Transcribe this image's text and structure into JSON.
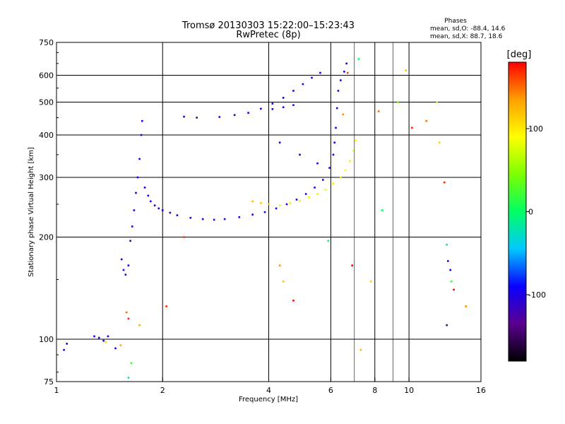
{
  "chart_data": {
    "type": "scatter",
    "title": "Tromsø 20130303 15:22:00–15:23:43",
    "subtitle": "RwPretec (8p)",
    "xlabel": "Frequency [MHz]",
    "ylabel": "Stationary phase Virtual Height [km]",
    "x_scale": "log",
    "y_scale": "log",
    "xlim": [
      1,
      16
    ],
    "ylim": [
      75,
      750
    ],
    "x_ticks": [
      1,
      2,
      4,
      6,
      8,
      10,
      16
    ],
    "y_ticks": [
      75,
      100,
      200,
      300,
      400,
      500,
      600,
      750
    ],
    "x_grid": [
      2,
      4,
      6,
      8,
      10
    ],
    "x_minor_grid": [
      7,
      9
    ],
    "y_grid": [
      100,
      200,
      300,
      400,
      500,
      600
    ],
    "grid": true,
    "phase_note": {
      "heading": "Phases",
      "line_o": "mean, sd,O: -88.4, 14.6",
      "line_x": "mean, sd,X: 88.7, 18.6"
    },
    "colorbar": {
      "label": "[deg]",
      "min": -180,
      "max": 180,
      "ticks": [
        100,
        0,
        -100
      ],
      "stops": [
        "#000000",
        "#5a0090",
        "#0a00ff",
        "#00c8ff",
        "#00ff64",
        "#7cff00",
        "#ffff00",
        "#ffa000",
        "#ff0000"
      ]
    },
    "series": [
      {
        "points": [
          [
            1.05,
            93,
            -100
          ],
          [
            1.07,
            97,
            -110
          ],
          [
            1.28,
            102,
            -95
          ],
          [
            1.32,
            101,
            -105
          ],
          [
            1.36,
            99,
            -90
          ],
          [
            1.4,
            102,
            -100
          ],
          [
            1.47,
            94,
            -110
          ],
          [
            1.53,
            172,
            -100
          ],
          [
            1.55,
            160,
            -110
          ],
          [
            1.57,
            155,
            -105
          ],
          [
            1.6,
            165,
            -95
          ],
          [
            1.62,
            195,
            -100
          ],
          [
            1.64,
            215,
            -100
          ],
          [
            1.66,
            240,
            -110
          ],
          [
            1.68,
            270,
            -100
          ],
          [
            1.7,
            300,
            -95
          ],
          [
            1.72,
            340,
            -100
          ],
          [
            1.74,
            400,
            -105
          ],
          [
            1.75,
            440,
            -100
          ],
          [
            1.78,
            280,
            -100
          ],
          [
            1.82,
            265,
            -95
          ],
          [
            1.85,
            255,
            -100
          ],
          [
            1.9,
            248,
            -105
          ],
          [
            1.95,
            243,
            -100
          ],
          [
            2.0,
            240,
            -100
          ],
          [
            2.1,
            236,
            -110
          ],
          [
            2.2,
            232,
            -100
          ],
          [
            2.4,
            228,
            -100
          ],
          [
            2.6,
            226,
            -95
          ],
          [
            2.8,
            225,
            -105
          ],
          [
            3.0,
            226,
            -100
          ],
          [
            3.3,
            229,
            -100
          ],
          [
            3.6,
            233,
            -105
          ],
          [
            3.9,
            237,
            -100
          ],
          [
            4.2,
            243,
            -100
          ],
          [
            4.5,
            250,
            -95
          ],
          [
            4.8,
            258,
            -100
          ],
          [
            5.1,
            268,
            -105
          ],
          [
            5.4,
            280,
            -100
          ],
          [
            5.7,
            295,
            -100
          ],
          [
            5.95,
            320,
            -110
          ],
          [
            6.1,
            350,
            -105
          ],
          [
            6.15,
            380,
            -100
          ],
          [
            6.2,
            420,
            -100
          ],
          [
            6.25,
            480,
            -110
          ],
          [
            6.3,
            540,
            -100
          ],
          [
            6.4,
            580,
            -100
          ],
          [
            6.55,
            615,
            -100
          ],
          [
            6.65,
            650,
            -105
          ],
          [
            2.3,
            453,
            -100
          ],
          [
            2.5,
            450,
            -105
          ],
          [
            2.9,
            452,
            -100
          ],
          [
            3.2,
            458,
            -100
          ],
          [
            3.5,
            465,
            -95
          ],
          [
            3.8,
            478,
            -100
          ],
          [
            4.1,
            495,
            -100
          ],
          [
            4.4,
            515,
            -105
          ],
          [
            4.7,
            540,
            -100
          ],
          [
            5.0,
            565,
            -100
          ],
          [
            5.3,
            590,
            -100
          ],
          [
            5.6,
            610,
            -100
          ],
          [
            4.1,
            477,
            -100
          ],
          [
            4.4,
            483,
            -100
          ],
          [
            4.7,
            490,
            -100
          ],
          [
            4.3,
            380,
            -100
          ],
          [
            4.9,
            350,
            -100
          ],
          [
            5.5,
            330,
            -100
          ]
        ]
      },
      {
        "points": [
          [
            3.6,
            255,
            120
          ],
          [
            3.8,
            252,
            115
          ],
          [
            4.0,
            250,
            110
          ],
          [
            4.3,
            248,
            95
          ],
          [
            4.6,
            252,
            100
          ],
          [
            4.9,
            256,
            100
          ],
          [
            5.2,
            262,
            95
          ],
          [
            5.5,
            268,
            100
          ],
          [
            5.8,
            276,
            95
          ],
          [
            6.1,
            288,
            100
          ],
          [
            6.4,
            300,
            100
          ],
          [
            6.6,
            315,
            95
          ],
          [
            6.8,
            335,
            100
          ],
          [
            6.95,
            360,
            90
          ],
          [
            7.05,
            385,
            100
          ],
          [
            6.5,
            460,
            140
          ],
          [
            6.7,
            610,
            160
          ],
          [
            7.2,
            670,
            10
          ],
          [
            8.2,
            470,
            150
          ],
          [
            8.4,
            240,
            0
          ],
          [
            9.3,
            500,
            40
          ],
          [
            9.8,
            620,
            120
          ],
          [
            10.2,
            420,
            170
          ],
          [
            11.2,
            440,
            150
          ],
          [
            12.0,
            500,
            70
          ],
          [
            12.2,
            380,
            110
          ],
          [
            12.6,
            290,
            170
          ],
          [
            12.8,
            190,
            -20
          ],
          [
            12.9,
            170,
            -120
          ],
          [
            13.1,
            160,
            -90
          ],
          [
            13.2,
            148,
            20
          ],
          [
            13.4,
            140,
            180
          ],
          [
            14.5,
            125,
            140
          ],
          [
            12.8,
            110,
            -110
          ],
          [
            7.8,
            148,
            110
          ],
          [
            7.3,
            93,
            130
          ],
          [
            6.9,
            165,
            180
          ],
          [
            5.9,
            195,
            0
          ],
          [
            1.58,
            120,
            150
          ],
          [
            1.6,
            115,
            170
          ],
          [
            1.52,
            96,
            130
          ],
          [
            1.63,
            85,
            20
          ],
          [
            1.6,
            77,
            -20
          ],
          [
            1.38,
            98,
            110
          ],
          [
            1.72,
            110,
            130
          ],
          [
            2.05,
            125,
            170
          ],
          [
            2.3,
            200,
            160
          ],
          [
            4.3,
            165,
            140
          ],
          [
            4.4,
            148,
            120
          ],
          [
            4.7,
            130,
            180
          ]
        ]
      }
    ]
  }
}
